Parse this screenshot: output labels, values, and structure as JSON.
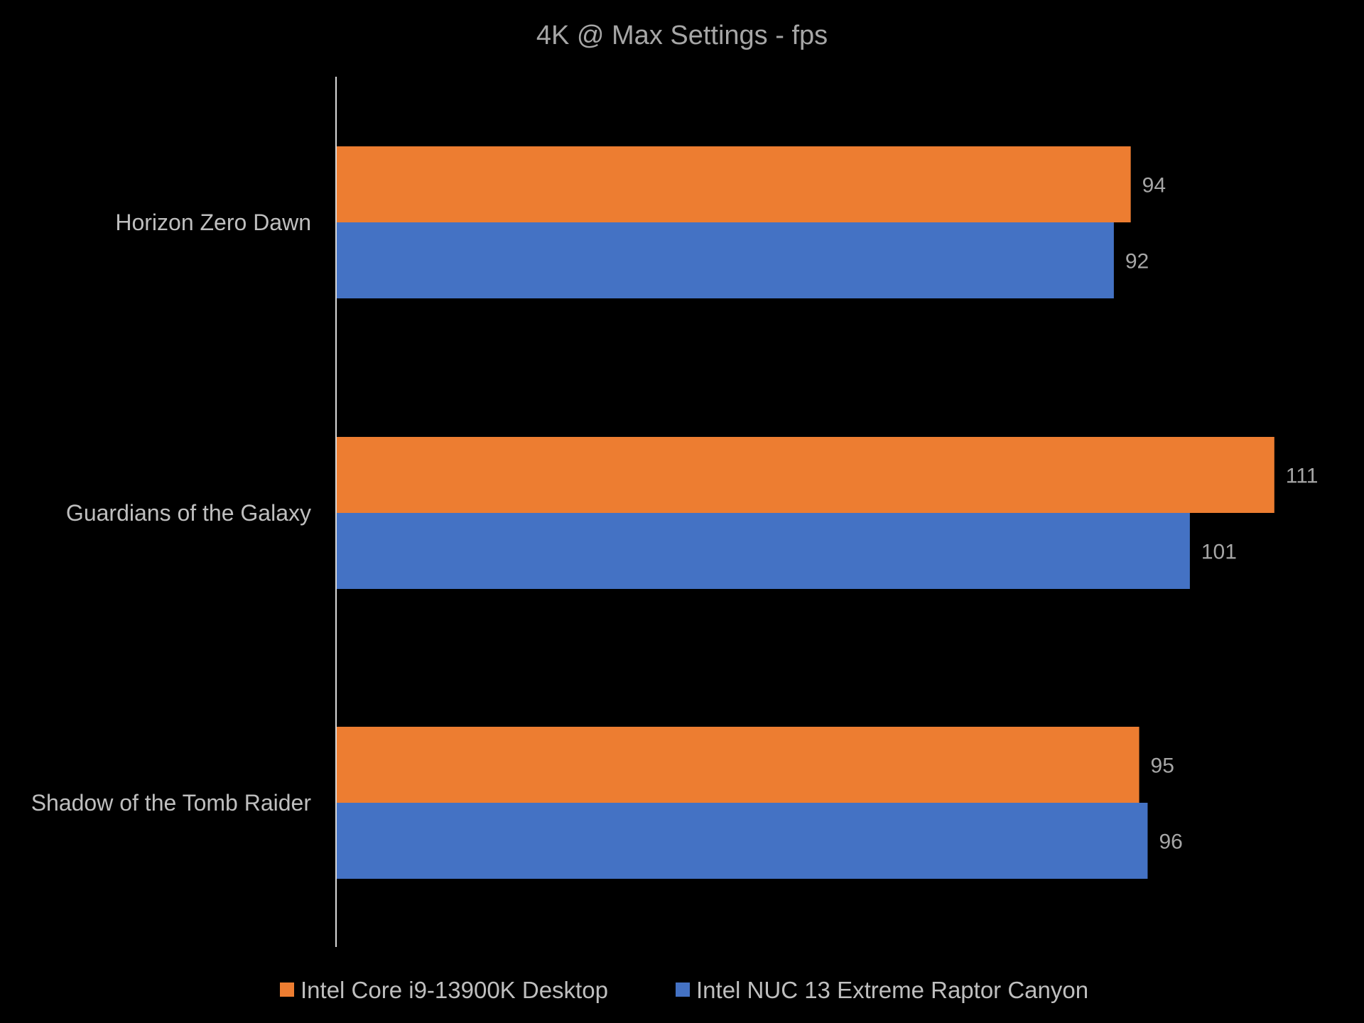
{
  "chart_data": {
    "type": "bar",
    "orientation": "horizontal",
    "title": "4K @ Max Settings - fps",
    "xlabel": "",
    "ylabel": "",
    "xlim": [
      0,
      111
    ],
    "grid": false,
    "legend_position": "bottom",
    "background": "#000000",
    "categories": [
      "Horizon Zero Dawn",
      "Guardians of the Galaxy",
      "Shadow of the Tomb Raider"
    ],
    "series": [
      {
        "name": "Intel Core i9-13900K Desktop",
        "color": "#ed7d31",
        "values": [
          94,
          111,
          95
        ]
      },
      {
        "name": "Intel NUC 13 Extreme Raptor Canyon",
        "color": "#4472c4",
        "values": [
          92,
          101,
          96
        ]
      }
    ]
  }
}
